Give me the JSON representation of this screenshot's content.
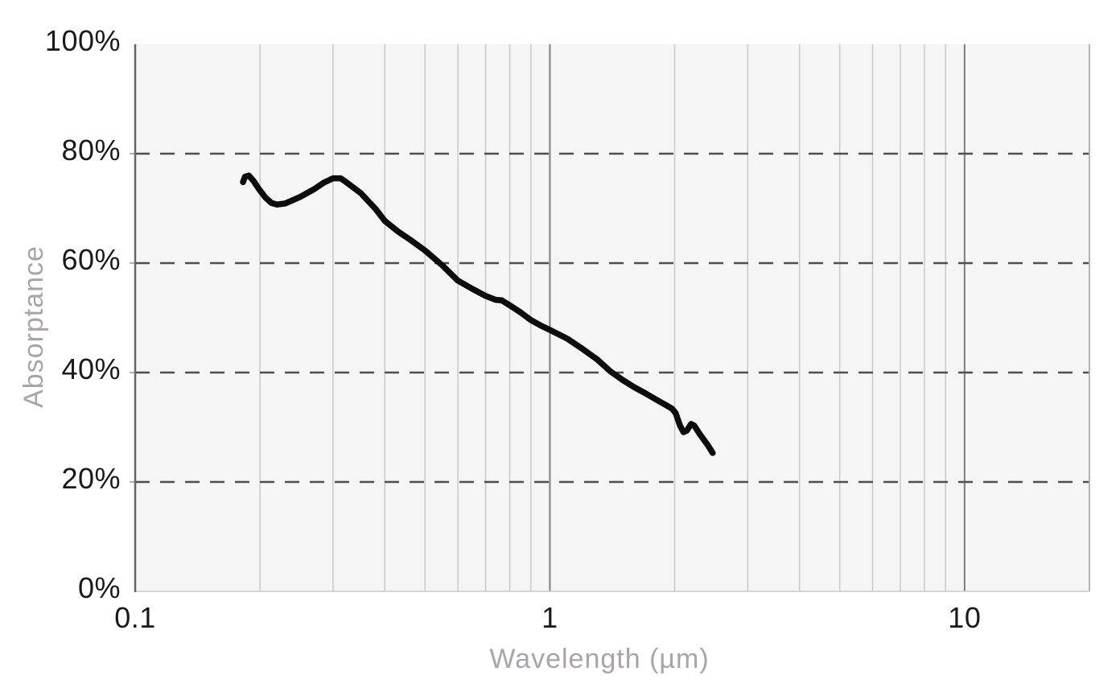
{
  "chart_data": {
    "type": "line",
    "title": "",
    "xlabel": "Wavelength (µm)",
    "ylabel": "Absorptance",
    "x_scale": "log",
    "xlim": [
      0.1,
      20
    ],
    "ylim": [
      0,
      100
    ],
    "grid": true,
    "legend": "none",
    "x_ticks": [
      {
        "value": 0.1,
        "label": "0.1"
      },
      {
        "value": 1,
        "label": "1"
      },
      {
        "value": 10,
        "label": "10"
      }
    ],
    "y_ticks": [
      {
        "value": 0,
        "label": "0%"
      },
      {
        "value": 20,
        "label": "20%"
      },
      {
        "value": 40,
        "label": "40%"
      },
      {
        "value": 60,
        "label": "60%"
      },
      {
        "value": 80,
        "label": "80%"
      },
      {
        "value": 100,
        "label": "100%"
      }
    ],
    "x_minor_gridlines": [
      0.2,
      0.3,
      0.4,
      0.5,
      0.6,
      0.7,
      0.8,
      0.9,
      2,
      3,
      4,
      5,
      6,
      7,
      8,
      9
    ],
    "x_major_gridlines": [
      1,
      10
    ],
    "y_dashed_gridlines": [
      20,
      40,
      60,
      80
    ],
    "series": [
      {
        "name": "Absorptance",
        "color": "#0d0d0d",
        "points": [
          [
            0.182,
            74.8
          ],
          [
            0.184,
            75.8
          ],
          [
            0.188,
            76.0
          ],
          [
            0.193,
            75.0
          ],
          [
            0.199,
            73.5
          ],
          [
            0.206,
            72.0
          ],
          [
            0.213,
            71.0
          ],
          [
            0.22,
            70.7
          ],
          [
            0.23,
            70.9
          ],
          [
            0.25,
            72.1
          ],
          [
            0.27,
            73.5
          ],
          [
            0.285,
            74.7
          ],
          [
            0.3,
            75.5
          ],
          [
            0.313,
            75.5
          ],
          [
            0.32,
            75.0
          ],
          [
            0.35,
            72.8
          ],
          [
            0.38,
            69.9
          ],
          [
            0.4,
            67.7
          ],
          [
            0.43,
            65.8
          ],
          [
            0.46,
            64.3
          ],
          [
            0.5,
            62.3
          ],
          [
            0.55,
            59.6
          ],
          [
            0.6,
            56.8
          ],
          [
            0.65,
            55.3
          ],
          [
            0.7,
            54.0
          ],
          [
            0.74,
            53.3
          ],
          [
            0.765,
            53.2
          ],
          [
            0.8,
            52.3
          ],
          [
            0.85,
            51.0
          ],
          [
            0.9,
            49.6
          ],
          [
            0.95,
            48.6
          ],
          [
            1.0,
            47.8
          ],
          [
            1.1,
            46.2
          ],
          [
            1.2,
            44.3
          ],
          [
            1.3,
            42.4
          ],
          [
            1.4,
            40.2
          ],
          [
            1.5,
            38.6
          ],
          [
            1.6,
            37.3
          ],
          [
            1.7,
            36.2
          ],
          [
            1.8,
            35.1
          ],
          [
            1.9,
            34.1
          ],
          [
            1.97,
            33.4
          ],
          [
            2.01,
            32.6
          ],
          [
            2.06,
            30.3
          ],
          [
            2.1,
            29.1
          ],
          [
            2.14,
            29.4
          ],
          [
            2.19,
            30.6
          ],
          [
            2.23,
            30.3
          ],
          [
            2.3,
            28.7
          ],
          [
            2.4,
            26.8
          ],
          [
            2.47,
            25.3
          ]
        ]
      }
    ],
    "colors": {
      "plot_bg": "#f5f5f5",
      "grid_minor": "#c6c6c9",
      "grid_major": "#7d7d80",
      "dashed": "#4e4e4e",
      "axis_left": "#646467",
      "border_right": "#b4b4b8",
      "border_bottom": "#c9c9cc",
      "tick_mark": "#b4b4b8",
      "tick_text": "#1a1a1a",
      "axis_title_text": "#a8a4a8",
      "curve": "#0d0d0d"
    }
  }
}
